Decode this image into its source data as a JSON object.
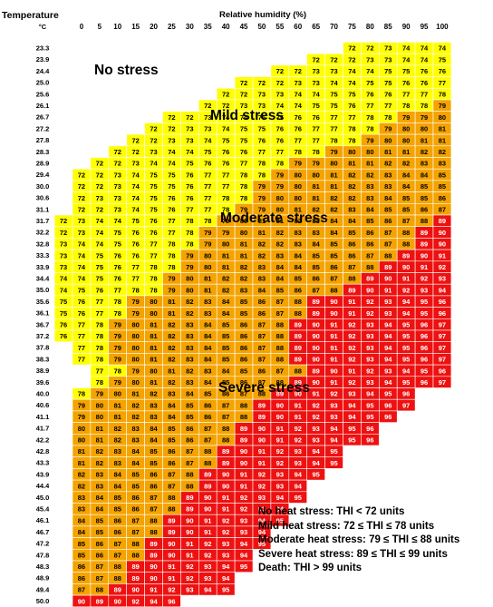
{
  "chart_data": {
    "type": "heatmap",
    "title": "",
    "ylabel": "Temperature",
    "yunit": "°C",
    "xlabel": "Relative humidity  (%)",
    "humidity": [
      0,
      5,
      10,
      15,
      20,
      25,
      30,
      35,
      40,
      45,
      50,
      55,
      60,
      65,
      70,
      75,
      80,
      85,
      90,
      95,
      100
    ],
    "temperature": [
      "23.3",
      "23.9",
      "24.4",
      "25.0",
      "25.6",
      "26.1",
      "26.7",
      "27.2",
      "27.8",
      "28.3",
      "28.9",
      "29.4",
      "30.0",
      "30.6",
      "31.1",
      "31.7",
      "32.2",
      "32.8",
      "33.3",
      "33.9",
      "34.4",
      "35.0",
      "35.6",
      "36.1",
      "36.7",
      "37.2",
      "37.8",
      "38.3",
      "38.9",
      "39.6",
      "40.0",
      "40.6",
      "41.1",
      "41.7",
      "42.2",
      "42.8",
      "43.3",
      "43.9",
      "44.4",
      "45.0",
      "45.4",
      "46.1",
      "46.7",
      "47.2",
      "47.8",
      "48.3",
      "48.9",
      "49.4",
      "50.0"
    ],
    "thi": [
      [
        72,
        72,
        73,
        74,
        74,
        74
      ],
      [
        72,
        72,
        72,
        73,
        73,
        74,
        74,
        75
      ],
      [
        72,
        72,
        73,
        73,
        74,
        74,
        75,
        75,
        76,
        76
      ],
      [
        72,
        72,
        72,
        73,
        73,
        74,
        74,
        75,
        75,
        76,
        76,
        77
      ],
      [
        72,
        72,
        73,
        73,
        74,
        74,
        75,
        75,
        76,
        76,
        77,
        77,
        78
      ],
      [
        72,
        72,
        73,
        73,
        74,
        74,
        75,
        75,
        76,
        77,
        77,
        78,
        78,
        79
      ],
      [
        72,
        72,
        73,
        74,
        74,
        75,
        75,
        76,
        76,
        77,
        77,
        78,
        78,
        79,
        79,
        80
      ],
      [
        72,
        72,
        73,
        73,
        74,
        75,
        75,
        76,
        76,
        77,
        77,
        78,
        78,
        79,
        80,
        80,
        81
      ],
      [
        72,
        72,
        73,
        73,
        74,
        75,
        75,
        76,
        76,
        77,
        77,
        78,
        78,
        79,
        80,
        80,
        81,
        81
      ],
      [
        72,
        72,
        73,
        74,
        74,
        75,
        76,
        76,
        77,
        77,
        78,
        78,
        79,
        80,
        80,
        81,
        81,
        82,
        82
      ],
      [
        72,
        72,
        73,
        74,
        74,
        75,
        76,
        76,
        77,
        78,
        78,
        79,
        79,
        80,
        81,
        81,
        82,
        82,
        83,
        83
      ],
      [
        72,
        72,
        73,
        74,
        75,
        75,
        76,
        77,
        77,
        78,
        78,
        79,
        80,
        80,
        81,
        82,
        82,
        83,
        84,
        84,
        85
      ],
      [
        72,
        72,
        73,
        74,
        75,
        75,
        76,
        77,
        77,
        78,
        79,
        79,
        80,
        81,
        81,
        82,
        83,
        83,
        84,
        85,
        85
      ],
      [
        72,
        73,
        73,
        74,
        75,
        76,
        76,
        77,
        78,
        78,
        79,
        80,
        80,
        81,
        82,
        82,
        83,
        84,
        85,
        85,
        86
      ],
      [
        72,
        72,
        73,
        74,
        75,
        76,
        77,
        77,
        78,
        79,
        79,
        80,
        81,
        82,
        82,
        83,
        84,
        85,
        85,
        86,
        87
      ],
      [
        72,
        73,
        74,
        74,
        75,
        76,
        77,
        78,
        78,
        79,
        80,
        81,
        81,
        82,
        83,
        84,
        84,
        85,
        86,
        87,
        88,
        89
      ],
      [
        72,
        73,
        74,
        75,
        76,
        76,
        77,
        78,
        79,
        79,
        80,
        81,
        82,
        83,
        83,
        84,
        85,
        86,
        87,
        88,
        89,
        90
      ],
      [
        73,
        74,
        74,
        75,
        76,
        77,
        78,
        78,
        79,
        80,
        81,
        82,
        82,
        83,
        84,
        85,
        86,
        86,
        87,
        88,
        89,
        90
      ],
      [
        73,
        74,
        75,
        76,
        76,
        77,
        78,
        79,
        80,
        81,
        81,
        82,
        83,
        84,
        85,
        85,
        86,
        87,
        88,
        89,
        90,
        91
      ],
      [
        73,
        74,
        75,
        76,
        77,
        78,
        78,
        79,
        80,
        81,
        82,
        83,
        84,
        84,
        85,
        86,
        87,
        88,
        89,
        90,
        91,
        92
      ],
      [
        74,
        74,
        75,
        76,
        77,
        78,
        79,
        80,
        81,
        82,
        82,
        83,
        84,
        85,
        86,
        87,
        88,
        89,
        90,
        91,
        92,
        93
      ],
      [
        74,
        75,
        76,
        77,
        78,
        78,
        79,
        80,
        81,
        82,
        83,
        84,
        85,
        86,
        87,
        88,
        89,
        90,
        91,
        92,
        93,
        94
      ],
      [
        75,
        76,
        77,
        78,
        79,
        80,
        81,
        82,
        83,
        84,
        85,
        86,
        87,
        88,
        89,
        90,
        91,
        92,
        93,
        94,
        95,
        96
      ],
      [
        75,
        76,
        77,
        78,
        79,
        80,
        81,
        82,
        83,
        84,
        85,
        86,
        87,
        88,
        89,
        90,
        91,
        92,
        93,
        94,
        95,
        96
      ],
      [
        76,
        77,
        78,
        79,
        80,
        81,
        82,
        83,
        84,
        85,
        86,
        87,
        88,
        89,
        90,
        91,
        92,
        93,
        94,
        95,
        96,
        97
      ],
      [
        76,
        77,
        78,
        79,
        80,
        81,
        82,
        83,
        84,
        85,
        86,
        87,
        88,
        89,
        90,
        91,
        92,
        93,
        94,
        95,
        96,
        97
      ],
      [
        77,
        78,
        79,
        80,
        81,
        82,
        83,
        84,
        85,
        86,
        87,
        88,
        89,
        90,
        91,
        92,
        93,
        94,
        95,
        96,
        97
      ],
      [
        77,
        78,
        79,
        80,
        81,
        82,
        83,
        84,
        85,
        86,
        87,
        88,
        89,
        90,
        91,
        92,
        93,
        94,
        95,
        96,
        97
      ],
      [
        77,
        78,
        79,
        80,
        81,
        82,
        83,
        84,
        85,
        86,
        87,
        88,
        89,
        90,
        91,
        92,
        93,
        94,
        95,
        96
      ],
      [
        78,
        79,
        80,
        81,
        82,
        83,
        84,
        85,
        86,
        87,
        88,
        89,
        90,
        91,
        92,
        93,
        94,
        95,
        96,
        97
      ],
      [
        78,
        79,
        80,
        81,
        82,
        83,
        84,
        85,
        86,
        87,
        88,
        89,
        90,
        91,
        92,
        93,
        94,
        95,
        96
      ],
      [
        79,
        80,
        81,
        82,
        83,
        84,
        85,
        86,
        87,
        88,
        89,
        90,
        91,
        92,
        93,
        94,
        95,
        96,
        97
      ],
      [
        79,
        80,
        81,
        82,
        83,
        84,
        85,
        86,
        87,
        88,
        89,
        90,
        91,
        92,
        93,
        94,
        95,
        96
      ],
      [
        80,
        81,
        82,
        83,
        84,
        85,
        86,
        87,
        88,
        89,
        90,
        91,
        92,
        93,
        94,
        95,
        96
      ],
      [
        80,
        81,
        82,
        83,
        84,
        85,
        86,
        87,
        88,
        89,
        90,
        91,
        92,
        93,
        94,
        95,
        96
      ],
      [
        81,
        82,
        83,
        84,
        85,
        86,
        87,
        88,
        89,
        90,
        91,
        92,
        93,
        94,
        95
      ],
      [
        81,
        82,
        83,
        84,
        85,
        86,
        87,
        88,
        89,
        90,
        91,
        92,
        93,
        94,
        95
      ],
      [
        82,
        83,
        84,
        85,
        86,
        87,
        88,
        89,
        90,
        91,
        92,
        93,
        94,
        95
      ],
      [
        82,
        83,
        84,
        85,
        86,
        87,
        88,
        89,
        90,
        91,
        92,
        93,
        94
      ],
      [
        83,
        84,
        85,
        86,
        87,
        88,
        89,
        90,
        91,
        92,
        93,
        94,
        95
      ],
      [
        83,
        84,
        85,
        86,
        87,
        88,
        89,
        90,
        91,
        92,
        93,
        94
      ],
      [
        84,
        85,
        86,
        87,
        88,
        89,
        90,
        91,
        92,
        93,
        94,
        95
      ],
      [
        84,
        85,
        86,
        87,
        88,
        89,
        90,
        91,
        92,
        93,
        94
      ],
      [
        85,
        86,
        87,
        88,
        89,
        90,
        91,
        92,
        93,
        94,
        95
      ],
      [
        85,
        86,
        87,
        88,
        89,
        90,
        91,
        92,
        93,
        94
      ],
      [
        86,
        87,
        88,
        89,
        90,
        91,
        92,
        93,
        94,
        95
      ],
      [
        86,
        87,
        88,
        89,
        90,
        91,
        92,
        93,
        94
      ],
      [
        87,
        88,
        89,
        90,
        91,
        92,
        93,
        94,
        95
      ],
      [
        90,
        89,
        90,
        92,
        94,
        96
      ]
    ],
    "thresholds": {
      "mild": 72,
      "moderate": 79,
      "severe": 89,
      "death": 99
    },
    "zone_labels": [
      "No stress",
      "Mild stress",
      "Moderate stress",
      "Severe stress"
    ],
    "legend": [
      "No heat stress: THI < 72 units",
      "Mild heat stress: 72 ≤ THI ≤ 78 units",
      "Moderate heat stress: 79 ≤ THI ≤ 88 units",
      "Severe heat stress: 89 ≤ THI ≤ 99 units",
      "Death: THI > 99 units"
    ],
    "colors": {
      "none": "#ffffff",
      "mild": "#ffff00",
      "moderate": "#f4a300",
      "severe": "#ee1111"
    },
    "grid": true,
    "legend_position": "bottom-right"
  }
}
